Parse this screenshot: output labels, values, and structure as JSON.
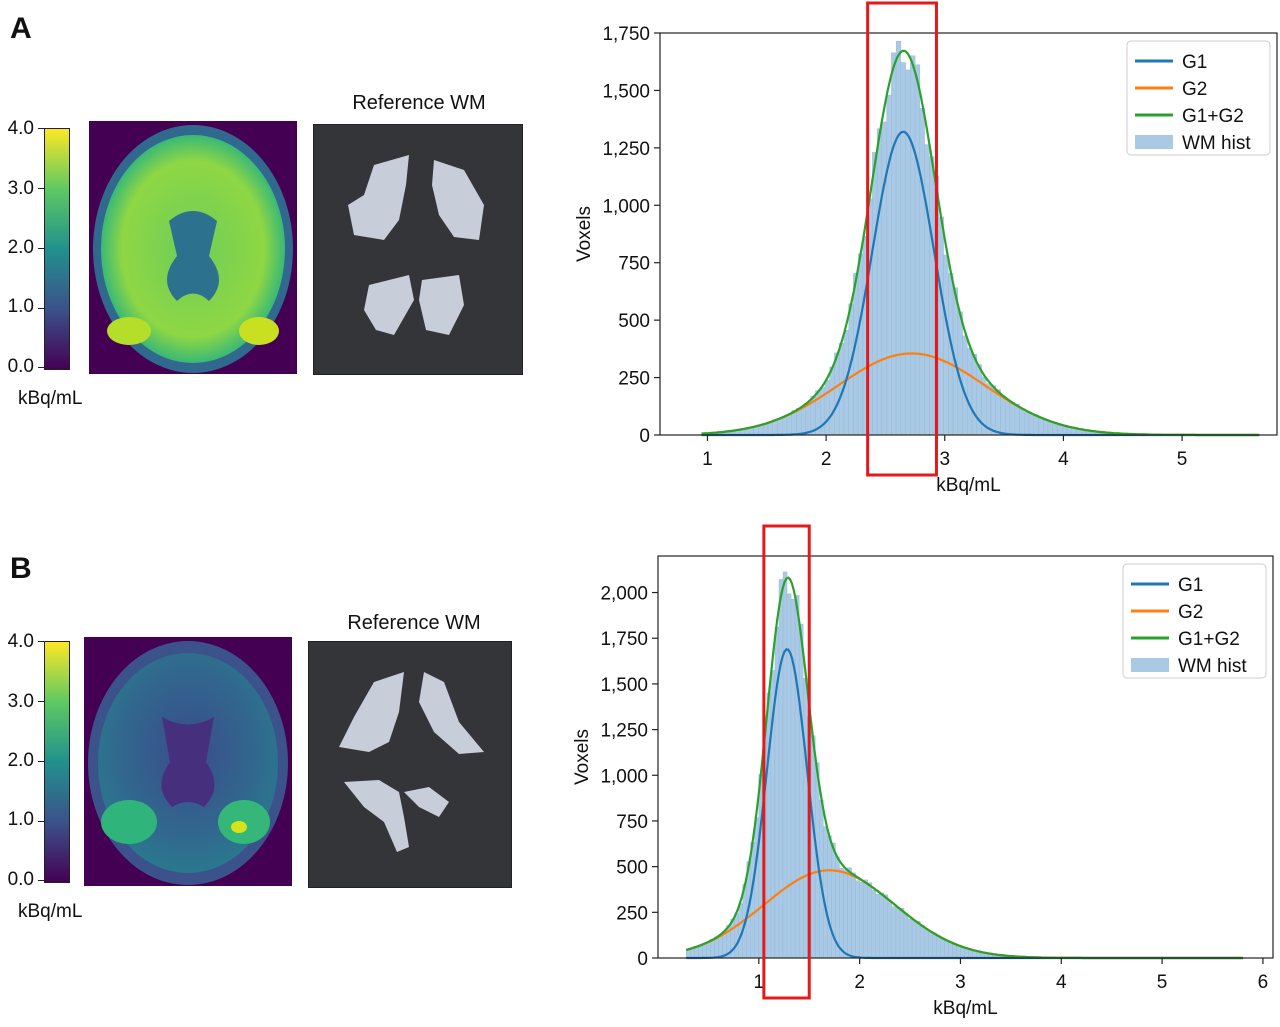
{
  "panels": [
    {
      "letter": "A",
      "colorbar": {
        "ticks": [
          "4.0",
          "3.0",
          "2.0",
          "1.0",
          "0.0"
        ],
        "unit": "kBq/mL"
      },
      "reference_title": "Reference WM",
      "chart_data": {
        "type": "line",
        "xlabel": "kBq/mL",
        "ylabel": "Voxels",
        "xlim": [
          0.6,
          5.8
        ],
        "ylim": [
          0,
          1750
        ],
        "xticks": [
          1,
          2,
          3,
          4,
          5
        ],
        "yticks": [
          0,
          250,
          500,
          750,
          1000,
          1250,
          1500,
          1750
        ],
        "ytick_labels": [
          "0",
          "250",
          "500",
          "750",
          "1,000",
          "1,250",
          "1,500",
          "1,750"
        ],
        "legend_position": "top-right",
        "series": [
          {
            "name": "G1",
            "color": "#1f77b4",
            "mu": 2.65,
            "sigma": 0.26,
            "amp": 1320
          },
          {
            "name": "G2",
            "color": "#ff7f0e",
            "mu": 2.72,
            "sigma": 0.62,
            "amp": 355
          },
          {
            "name": "G1+G2",
            "color": "#2ca02c"
          },
          {
            "name": "WM hist",
            "color": "#a9c9e4"
          }
        ],
        "x_range": [
          0.95,
          5.65
        ],
        "highlight_x": [
          2.35,
          2.93
        ],
        "highlight_color": "#e31a1c"
      }
    },
    {
      "letter": "B",
      "colorbar": {
        "ticks": [
          "4.0",
          "3.0",
          "2.0",
          "1.0",
          "0.0"
        ],
        "unit": "kBq/mL"
      },
      "reference_title": "Reference WM",
      "chart_data": {
        "type": "line",
        "xlabel": "kBq/mL",
        "ylabel": "Voxels",
        "xlim": [
          0.0,
          6.1
        ],
        "ylim": [
          0,
          2200
        ],
        "xticks": [
          1,
          2,
          3,
          4,
          5,
          6
        ],
        "yticks": [
          0,
          250,
          500,
          750,
          1000,
          1250,
          1500,
          1750,
          2000
        ],
        "ytick_labels": [
          "0",
          "250",
          "500",
          "750",
          "1,000",
          "1,250",
          "1,500",
          "1,750",
          "2,000"
        ],
        "legend_position": "top-right",
        "series": [
          {
            "name": "G1",
            "color": "#1f77b4",
            "mu": 1.28,
            "sigma": 0.2,
            "amp": 1690
          },
          {
            "name": "G2",
            "color": "#ff7f0e",
            "mu": 1.7,
            "sigma": 0.65,
            "amp": 480
          },
          {
            "name": "G1+G2",
            "color": "#2ca02c"
          },
          {
            "name": "WM hist",
            "color": "#a9c9e4"
          }
        ],
        "x_range": [
          0.28,
          5.8
        ],
        "highlight_x": [
          1.05,
          1.5
        ],
        "highlight_color": "#e31a1c"
      }
    }
  ]
}
